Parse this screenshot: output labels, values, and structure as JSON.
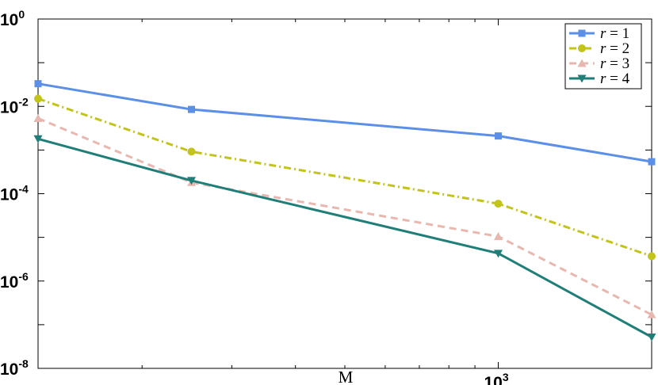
{
  "chart_data": {
    "type": "line",
    "xscale": "log",
    "yscale": "log",
    "xlim": [
      125,
      2000
    ],
    "ylim": [
      1e-08,
      1
    ],
    "xlabel": "M",
    "ylabel": "",
    "title": "",
    "grid": false,
    "legend_position": "top-right",
    "x_ticks": [
      {
        "value": 1000,
        "base": "10",
        "exp": "3"
      }
    ],
    "y_ticks": [
      {
        "value": 1,
        "base": "10",
        "exp": "0"
      },
      {
        "value": 0.01,
        "base": "10",
        "exp": "-2"
      },
      {
        "value": 0.0001,
        "base": "10",
        "exp": "-4"
      },
      {
        "value": 1e-06,
        "base": "10",
        "exp": "-6"
      },
      {
        "value": 1e-08,
        "base": "10",
        "exp": "-8"
      }
    ],
    "x": [
      125,
      250,
      1000,
      2000
    ],
    "series": [
      {
        "name": "r = 1",
        "var": "r",
        "num": "1",
        "color": "#5b8fe8",
        "dash": "solid",
        "marker": "square",
        "values": [
          0.033,
          0.0085,
          0.0021,
          0.00054
        ]
      },
      {
        "name": "r = 2",
        "var": "r",
        "num": "2",
        "color": "#c2c41a",
        "dash": "dashdot",
        "marker": "circle",
        "values": [
          0.015,
          0.00092,
          5.9e-05,
          3.7e-06
        ]
      },
      {
        "name": "r = 3",
        "var": "r",
        "num": "3",
        "color": "#e8b8b0",
        "dash": "dashed",
        "marker": "triangle-up",
        "values": [
          0.0053,
          0.00018,
          1.05e-05,
          1.7e-07
        ]
      },
      {
        "name": "r = 4",
        "var": "r",
        "num": "4",
        "color": "#1f7f78",
        "dash": "solid",
        "marker": "triangle-down",
        "values": [
          0.0018,
          0.0002,
          4.3e-06,
          5.2e-08
        ]
      }
    ]
  }
}
